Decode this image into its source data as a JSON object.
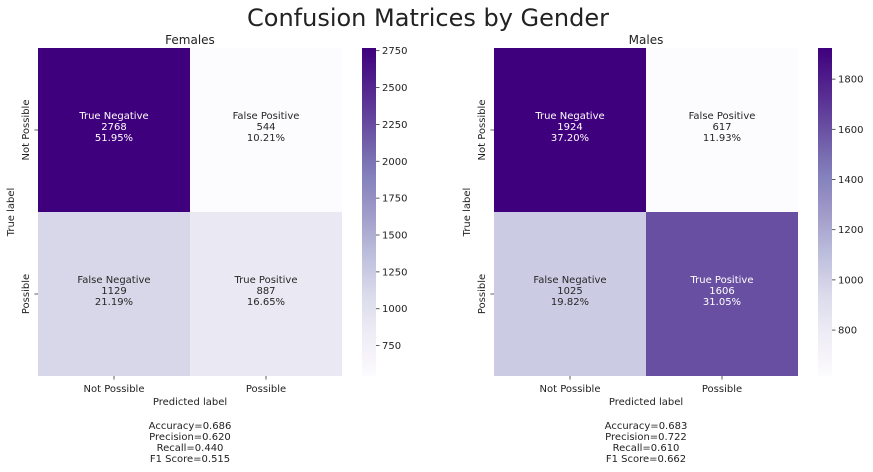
{
  "suptitle": "Confusion Matrices by Gender",
  "colors": {
    "cmap_low": "#fcfbfd",
    "cmap_high": "#3f007d"
  },
  "chart_data": [
    {
      "type": "heatmap",
      "title": "Females",
      "xlabel": "Predicted label",
      "ylabel": "True label",
      "x_categories": [
        "Not Possible",
        "Possible"
      ],
      "y_categories": [
        "Not Possible",
        "Possible"
      ],
      "cells": [
        [
          {
            "name": "True Negative",
            "count": 2768,
            "percent": "51.95%"
          },
          {
            "name": "False Positive",
            "count": 544,
            "percent": "10.21%"
          }
        ],
        [
          {
            "name": "False Negative",
            "count": 1129,
            "percent": "21.19%"
          },
          {
            "name": "True Positive",
            "count": 887,
            "percent": "16.65%"
          }
        ]
      ],
      "colorbar_range": [
        544,
        2768
      ],
      "colorbar_ticks": [
        750,
        1000,
        1250,
        1500,
        1750,
        2000,
        2250,
        2500,
        2750
      ],
      "metrics": [
        "Accuracy=0.686",
        "Precision=0.620",
        "Recall=0.440",
        "F1 Score=0.515"
      ]
    },
    {
      "type": "heatmap",
      "title": "Males",
      "xlabel": "Predicted label",
      "ylabel": "True label",
      "x_categories": [
        "Not Possible",
        "Possible"
      ],
      "y_categories": [
        "Not Possible",
        "Possible"
      ],
      "cells": [
        [
          {
            "name": "True Negative",
            "count": 1924,
            "percent": "37.20%"
          },
          {
            "name": "False Positive",
            "count": 617,
            "percent": "11.93%"
          }
        ],
        [
          {
            "name": "False Negative",
            "count": 1025,
            "percent": "19.82%"
          },
          {
            "name": "True Positive",
            "count": 1606,
            "percent": "31.05%"
          }
        ]
      ],
      "colorbar_range": [
        617,
        1924
      ],
      "colorbar_ticks": [
        800,
        1000,
        1200,
        1400,
        1600,
        1800
      ],
      "metrics": [
        "Accuracy=0.683",
        "Precision=0.722",
        "Recall=0.610",
        "F1 Score=0.662"
      ]
    }
  ]
}
